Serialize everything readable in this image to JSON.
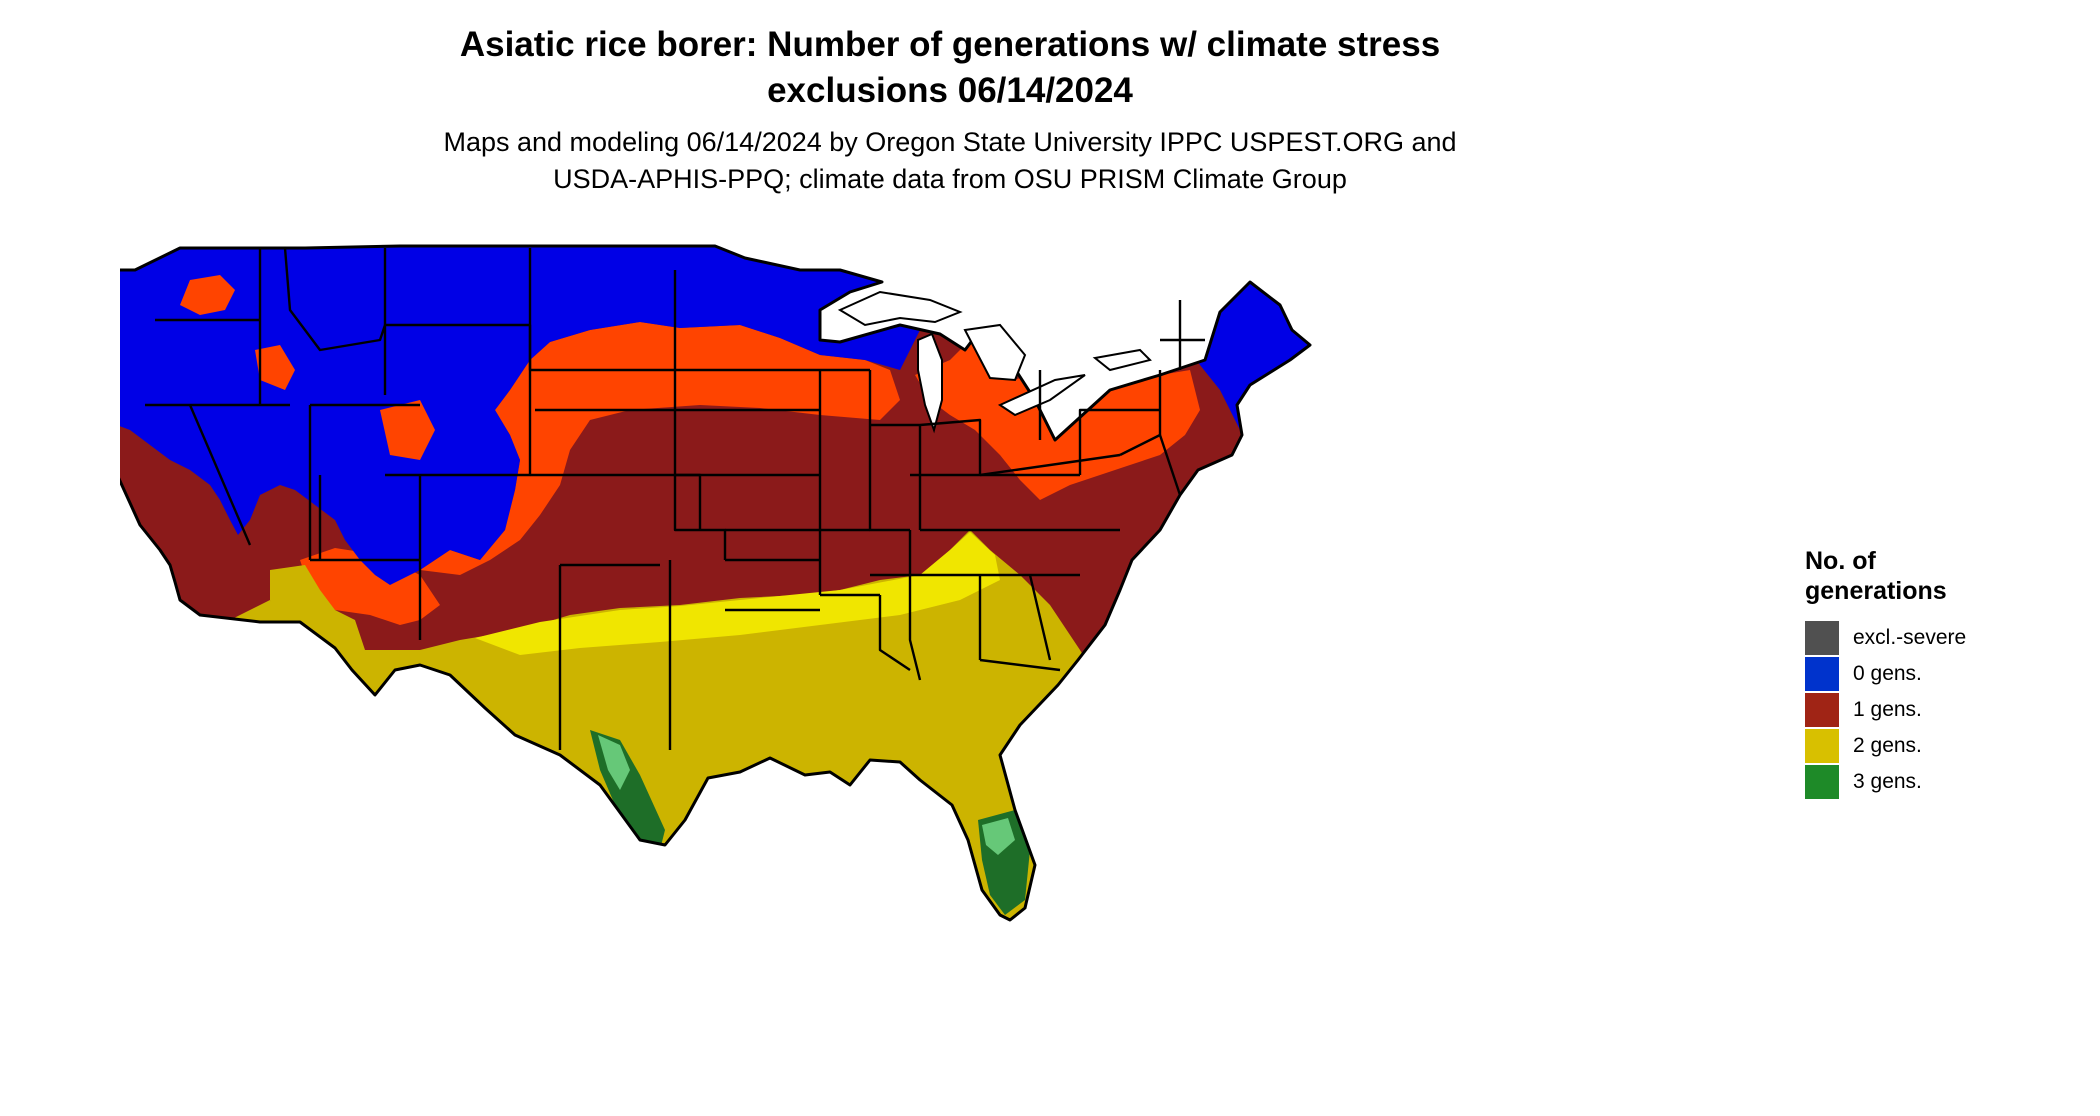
{
  "header": {
    "title_line1": "Asiatic rice borer: Number of generations w/ climate stress",
    "title_line2": "exclusions 06/14/2024",
    "subtitle_line1": "Maps and modeling 06/14/2024 by Oregon State University IPPC USPEST.ORG and",
    "subtitle_line2": "USDA-APHIS-PPQ; climate data from OSU PRISM Climate Group"
  },
  "legend": {
    "title_line1": "No. of",
    "title_line2": "generations",
    "items": [
      {
        "label": "excl.-severe",
        "color": "#505050"
      },
      {
        "label": "0 gens.",
        "color": "#0033cc"
      },
      {
        "label": "1 gens.",
        "color": "#a02415"
      },
      {
        "label": "2 gens.",
        "color": "#d8c000"
      },
      {
        "label": "3 gens.",
        "color": "#1e8a28"
      }
    ]
  },
  "map_colors": {
    "zero_gens": "#0000e6",
    "one_gen_dark": "#8b1a1a",
    "one_gen_light": "#ff4400",
    "two_gens_dark": "#ccb400",
    "two_gens_light": "#f0e600",
    "three_gens_dark": "#1e6e28",
    "three_gens_light": "#66c878",
    "state_border": "#000000",
    "water": "#ffffff"
  }
}
